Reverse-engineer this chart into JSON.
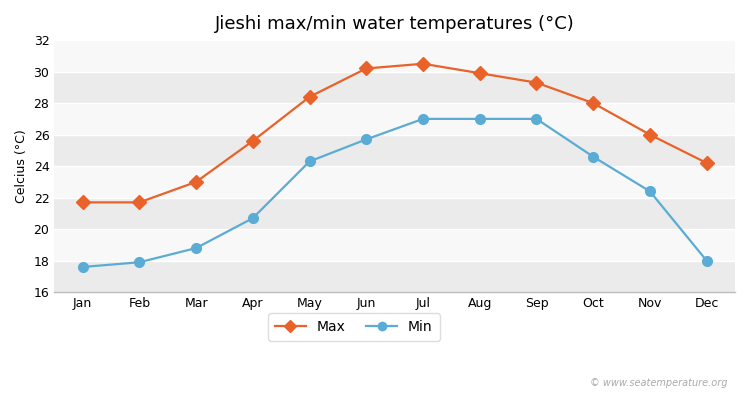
{
  "title": "Jieshi max/min water temperatures (°C)",
  "xlabel_months": [
    "Jan",
    "Feb",
    "Mar",
    "Apr",
    "May",
    "Jun",
    "Jul",
    "Aug",
    "Sep",
    "Oct",
    "Nov",
    "Dec"
  ],
  "max_values": [
    21.7,
    21.7,
    23.0,
    25.6,
    28.4,
    30.2,
    30.5,
    29.9,
    29.3,
    28.0,
    26.0,
    24.2
  ],
  "min_values": [
    17.6,
    17.9,
    18.8,
    20.7,
    24.3,
    25.7,
    27.0,
    27.0,
    27.0,
    24.6,
    22.4,
    18.0
  ],
  "max_color": "#e8622a",
  "min_color": "#5bacd4",
  "ylim": [
    16,
    32
  ],
  "yticks": [
    16,
    18,
    20,
    22,
    24,
    26,
    28,
    30,
    32
  ],
  "ylabel": "Celcius (°C)",
  "fig_bg_color": "#ffffff",
  "plot_bg_color": "#f0f0f0",
  "band_color_light": "#ebebeb",
  "band_color_white": "#f8f8f8",
  "grid_color": "#ffffff",
  "watermark": "© www.seatemperature.org",
  "legend_labels": [
    "Max",
    "Min"
  ],
  "title_fontsize": 13,
  "label_fontsize": 9,
  "tick_fontsize": 9
}
